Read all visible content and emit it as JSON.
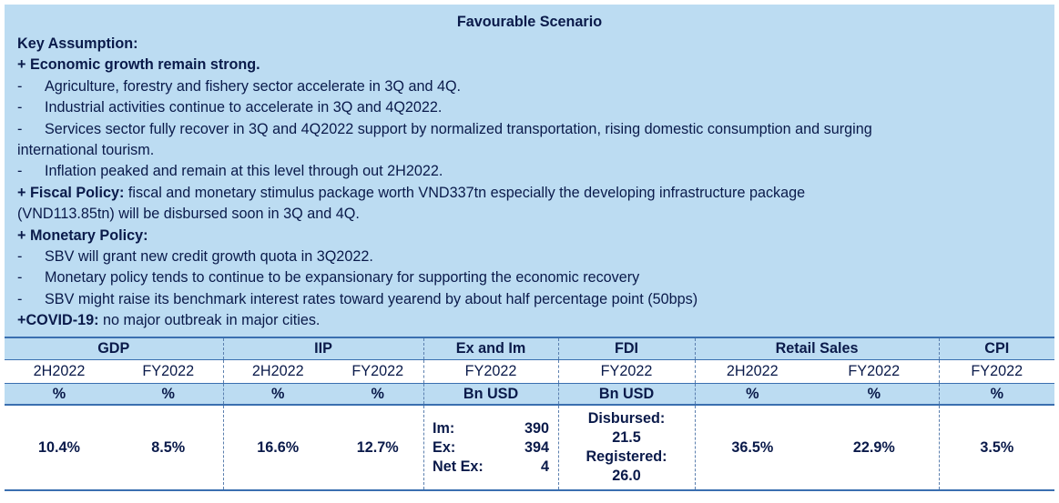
{
  "title": "Favourable Scenario",
  "key_assumption": "Key Assumption:",
  "economic_growth": {
    "heading": "+ Economic growth remain strong.",
    "bullets": [
      "Agriculture, forestry and fishery sector accelerate in 3Q and 4Q.",
      "Industrial activities continue to accelerate in 3Q and 4Q2022.",
      "Services sector fully recover in 3Q and 4Q2022 support by normalized transportation, rising domestic consumption and surging",
      "Inflation peaked and remain at this level through out 2H2022."
    ],
    "bullet3_cont": "international tourism."
  },
  "fiscal": {
    "label": "+ Fiscal Policy:",
    "text1": " fiscal and monetary stimulus package worth VND337tn especially the developing infrastructure package",
    "text2": "(VND113.85tn) will be disbursed soon in 3Q and 4Q."
  },
  "monetary": {
    "heading": "+ Monetary Policy:",
    "bullets": [
      "SBV will grant new credit growth quota in 3Q2022.",
      "Monetary policy tends to continue to be expansionary for supporting the economic recovery",
      "SBV might raise its benchmark interest rates toward yearend by about half percentage point (50bps)"
    ]
  },
  "covid": {
    "label": "+COVID-19:",
    "text": " no major outbreak in major cities."
  },
  "dash": "-",
  "table": {
    "groups": [
      "GDP",
      "IIP",
      "Ex and Im",
      "FDI",
      "Retail Sales",
      "CPI"
    ],
    "periods": [
      "2H2022",
      "FY2022",
      "2H2022",
      "FY2022",
      "FY2022",
      "FY2022",
      "2H2022",
      "FY2022",
      "FY2022"
    ],
    "units": [
      "%",
      "%",
      "%",
      "%",
      "Bn USD",
      "Bn USD",
      "%",
      "%",
      "%"
    ],
    "values": {
      "gdp_2h": "10.4%",
      "gdp_fy": "8.5%",
      "iip_2h": "16.6%",
      "iip_fy": "12.7%",
      "im_label": "Im:",
      "im_value": "390",
      "ex_label": "Ex:",
      "ex_value": "394",
      "netex_label": "Net Ex:",
      "netex_value": "4",
      "fdi_disbursed_label": "Disbursed:",
      "fdi_disbursed_value": "21.5",
      "fdi_registered_label": "Registered:",
      "fdi_registered_value": "26.0",
      "retail_2h": "36.5%",
      "retail_fy": "22.9%",
      "cpi_fy": "3.5%"
    }
  }
}
